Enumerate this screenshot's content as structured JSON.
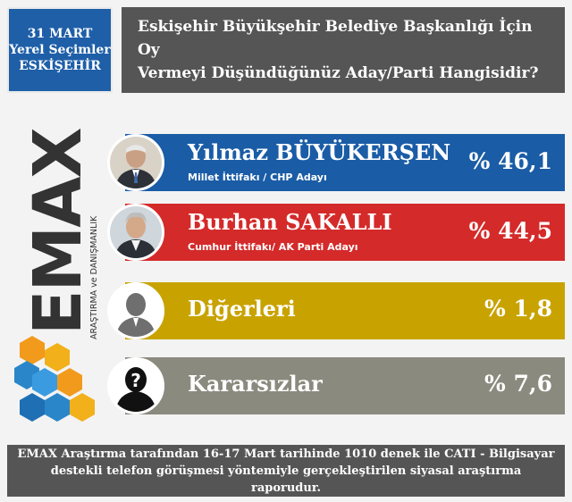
{
  "header": {
    "date_line1": "31 MART",
    "date_line2": "Yerel Seçimler",
    "date_line3": "ESKİŞEHİR",
    "question_line1": "Eskişehir Büyükşehir Belediye Başkanlığı İçin Oy",
    "question_line2": "Vermeyi Düşündüğünüz Aday/Parti Hangisidir?"
  },
  "logo": {
    "brand": "EMAX",
    "tagline": "ARAŞTIRMA ve DANIŞMANLIK",
    "colors": {
      "brand_dark": "#333333",
      "accent_orange": "#f29a1b",
      "accent_blue": "#2a86c9"
    }
  },
  "chart_data": {
    "type": "bar",
    "title": "Eskişehir Büyükşehir Belediye Başkanlığı İçin Oy Vermeyi Düşündüğünüz Aday/Parti Hangisidir?",
    "categories": [
      "Yılmaz BÜYÜKERŞEN",
      "Burhan SAKALLI",
      "Diğerleri",
      "Kararsızlar"
    ],
    "values": [
      46.1,
      44.5,
      1.8,
      7.6
    ],
    "value_labels": [
      "% 46,1",
      "% 44,5",
      "% 1,8",
      "% 7,6"
    ],
    "subtitles": [
      "Millet İttifakı / CHP Adayı",
      "Cumhur İttifakı/ AK Parti Adayı",
      "",
      ""
    ],
    "bar_colors": [
      "#1a5ca6",
      "#d42a2a",
      "#c8a300",
      "#8a8a7e"
    ],
    "avatar_icons": [
      "person-photo-icon",
      "person-photo-icon",
      "person-silhouette-icon",
      "question-person-icon"
    ]
  },
  "footer": {
    "line1": "EMAX Araştırma tarafından 16-17 Mart tarihinde 1010 denek ile CATI - Bilgisayar",
    "line2": "destekli telefon görüşmesi yöntemiyle gerçekleştirilen siyasal araştırma raporudur."
  }
}
